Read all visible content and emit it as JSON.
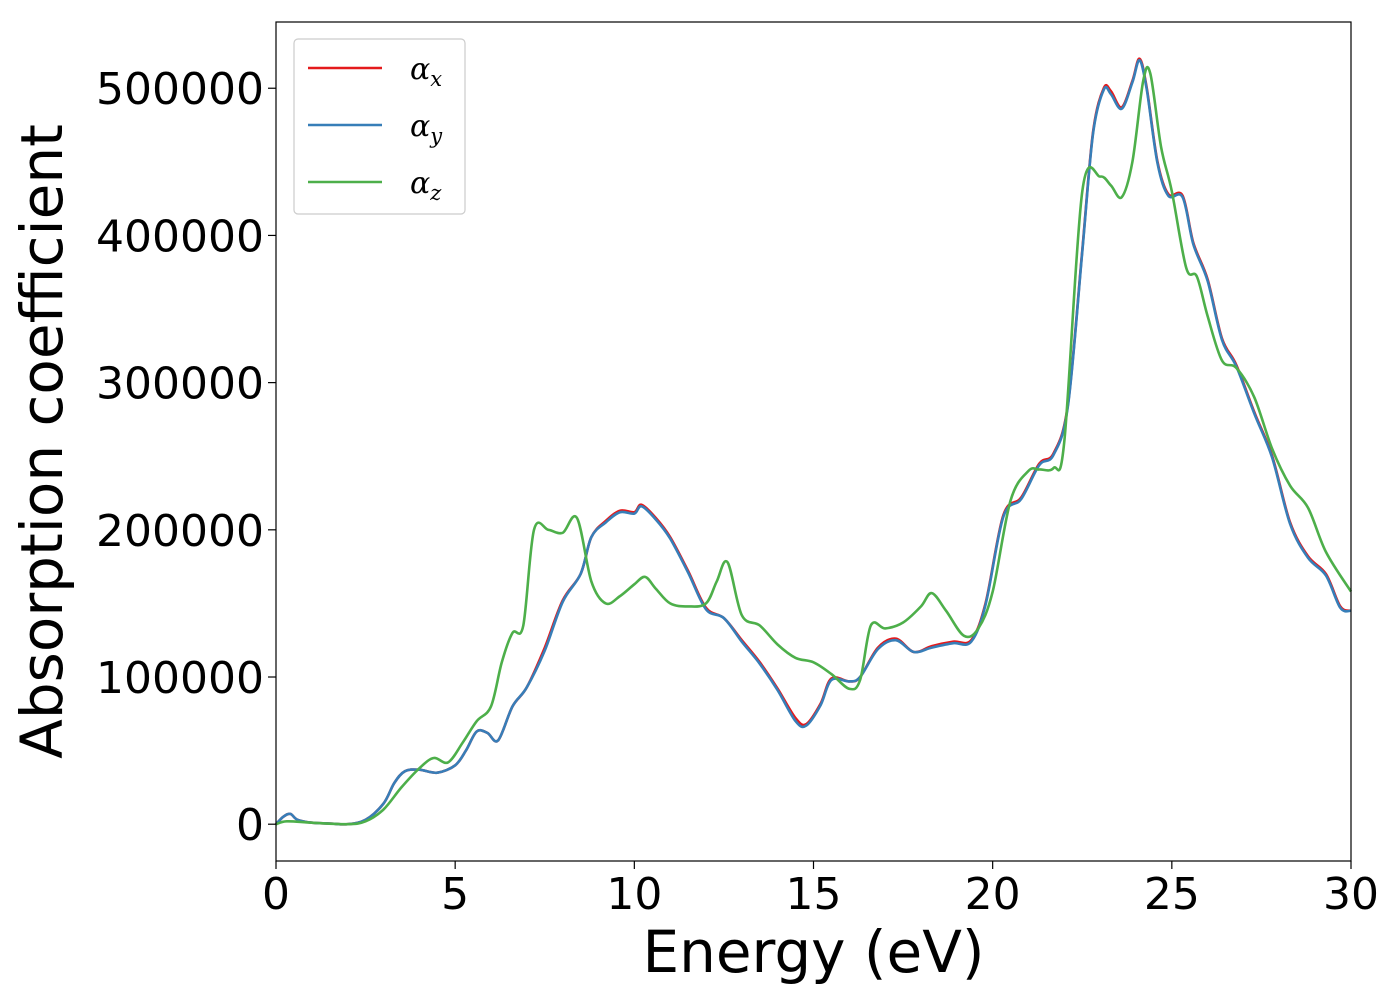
{
  "chart_data": {
    "type": "line",
    "title": "",
    "xlabel": "Energy (eV)",
    "ylabel": "Absorption coefficient",
    "xlim": [
      0,
      30
    ],
    "ylim": [
      -25000,
      545000
    ],
    "xticks": [
      0,
      5,
      10,
      15,
      20,
      25,
      30
    ],
    "xtick_labels": [
      "0",
      "5",
      "10",
      "15",
      "20",
      "25",
      "30"
    ],
    "yticks": [
      0,
      100000,
      200000,
      300000,
      400000,
      500000
    ],
    "ytick_labels": [
      "0",
      "100000",
      "200000",
      "300000",
      "400000",
      "500000"
    ],
    "grid": false,
    "legend_position": "top-left",
    "series": [
      {
        "name": "αx",
        "name_base": "α",
        "name_sub": "x",
        "color": "#e41a1c",
        "x": [
          0,
          0.2,
          0.4,
          0.6,
          1.0,
          1.5,
          2.0,
          2.5,
          3.0,
          3.3,
          3.6,
          4.0,
          4.5,
          5.0,
          5.3,
          5.6,
          5.9,
          6.2,
          6.6,
          7.0,
          7.5,
          8.0,
          8.5,
          8.8,
          9.2,
          9.6,
          10.0,
          10.2,
          10.6,
          11.0,
          11.5,
          12.0,
          12.5,
          13.0,
          13.5,
          14.0,
          14.5,
          14.8,
          15.2,
          15.5,
          16.0,
          16.3,
          16.8,
          17.3,
          17.8,
          18.3,
          18.9,
          19.4,
          19.8,
          20.3,
          20.8,
          21.3,
          21.7,
          22.1,
          22.5,
          22.8,
          23.1,
          23.3,
          23.6,
          23.9,
          24.1,
          24.3,
          24.6,
          24.9,
          25.3,
          25.6,
          26.0,
          26.4,
          26.8,
          27.3,
          27.8,
          28.3,
          28.8,
          29.3,
          29.7,
          30.0
        ],
        "y": [
          0,
          5000,
          7000,
          3000,
          1000,
          500,
          0,
          3000,
          14000,
          28000,
          36000,
          37000,
          35000,
          40000,
          50000,
          63000,
          62000,
          57000,
          80000,
          93000,
          120000,
          152000,
          170000,
          195000,
          206000,
          213000,
          212000,
          217000,
          208000,
          195000,
          172000,
          147000,
          140000,
          125000,
          110000,
          92000,
          72000,
          68000,
          82000,
          99000,
          97000,
          100000,
          120000,
          126000,
          117000,
          121000,
          124000,
          125000,
          150000,
          210000,
          222000,
          245000,
          252000,
          285000,
          390000,
          470000,
          500000,
          498000,
          487000,
          505000,
          520000,
          500000,
          450000,
          428000,
          427000,
          395000,
          370000,
          330000,
          312000,
          280000,
          250000,
          205000,
          182000,
          170000,
          148000,
          145000
        ]
      },
      {
        "name": "αy",
        "name_base": "α",
        "name_sub": "y",
        "color": "#377eb8",
        "x": [
          0,
          0.2,
          0.4,
          0.6,
          1.0,
          1.5,
          2.0,
          2.5,
          3.0,
          3.3,
          3.6,
          4.0,
          4.5,
          5.0,
          5.3,
          5.6,
          5.9,
          6.2,
          6.6,
          7.0,
          7.5,
          8.0,
          8.5,
          8.8,
          9.2,
          9.6,
          10.0,
          10.2,
          10.6,
          11.0,
          11.5,
          12.0,
          12.5,
          13.0,
          13.5,
          14.0,
          14.5,
          14.8,
          15.2,
          15.5,
          16.0,
          16.3,
          16.8,
          17.3,
          17.8,
          18.3,
          18.9,
          19.4,
          19.8,
          20.3,
          20.8,
          21.3,
          21.7,
          22.1,
          22.5,
          22.8,
          23.1,
          23.3,
          23.6,
          23.9,
          24.1,
          24.3,
          24.6,
          24.9,
          25.3,
          25.6,
          26.0,
          26.4,
          26.8,
          27.3,
          27.8,
          28.3,
          28.8,
          29.3,
          29.7,
          30.0
        ],
        "y": [
          0,
          5000,
          7000,
          3000,
          1000,
          500,
          0,
          3000,
          14000,
          28000,
          36000,
          37000,
          35000,
          40000,
          50000,
          63000,
          62000,
          57000,
          80000,
          93000,
          118000,
          151000,
          170000,
          195000,
          205000,
          212000,
          211000,
          216000,
          207000,
          194000,
          171000,
          146000,
          140000,
          124000,
          109000,
          91000,
          70000,
          67000,
          81000,
          98000,
          97000,
          100000,
          119000,
          125000,
          117000,
          120000,
          123000,
          124000,
          149000,
          209000,
          221000,
          244000,
          251000,
          284000,
          389000,
          469000,
          499000,
          496000,
          486000,
          504000,
          519000,
          499000,
          449000,
          427000,
          426000,
          394000,
          369000,
          329000,
          311000,
          279000,
          249000,
          204000,
          181000,
          169000,
          147000,
          145000
        ]
      },
      {
        "name": "αz",
        "name_base": "α",
        "name_sub": "z",
        "color": "#4daf4a",
        "x": [
          0,
          0.3,
          1.0,
          2.0,
          2.5,
          3.0,
          3.5,
          4.0,
          4.4,
          4.8,
          5.2,
          5.6,
          6.0,
          6.3,
          6.6,
          6.9,
          7.2,
          7.6,
          8.0,
          8.4,
          8.8,
          9.2,
          9.6,
          10.0,
          10.3,
          10.6,
          11.0,
          11.5,
          12.0,
          12.3,
          12.6,
          13.0,
          13.5,
          14.0,
          14.5,
          15.0,
          15.5,
          16.0,
          16.3,
          16.6,
          17.0,
          17.5,
          18.0,
          18.3,
          18.7,
          19.2,
          19.6,
          20.0,
          20.5,
          21.0,
          21.3,
          21.7,
          22.0,
          22.5,
          23.0,
          23.3,
          23.6,
          23.9,
          24.2,
          24.4,
          24.7,
          25.0,
          25.4,
          25.7,
          26.0,
          26.4,
          26.8,
          27.3,
          27.8,
          28.3,
          28.8,
          29.3,
          30.0
        ],
        "y": [
          0,
          2000,
          1000,
          0,
          2000,
          10000,
          25000,
          38000,
          45000,
          42000,
          55000,
          70000,
          80000,
          110000,
          130000,
          135000,
          200000,
          200000,
          198000,
          208000,
          165000,
          150000,
          155000,
          163000,
          168000,
          160000,
          150000,
          148000,
          150000,
          165000,
          178000,
          142000,
          135000,
          122000,
          113000,
          110000,
          102000,
          92000,
          98000,
          135000,
          133000,
          137000,
          148000,
          157000,
          145000,
          128000,
          133000,
          158000,
          220000,
          240000,
          241000,
          242000,
          260000,
          430000,
          440000,
          434000,
          426000,
          450000,
          505000,
          510000,
          460000,
          430000,
          378000,
          372000,
          345000,
          315000,
          310000,
          290000,
          255000,
          230000,
          215000,
          185000,
          158000
        ]
      }
    ]
  }
}
